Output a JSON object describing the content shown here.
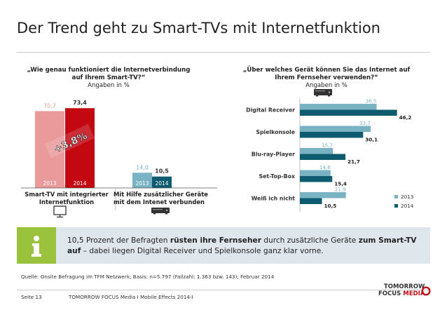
{
  "title": "Der Trend geht zu Smart-TVs mit Internetfunktion",
  "left_chart": {
    "question": "„Wie genau funktioniert die Internetverbindung auf Ihrem Smart-TV?“",
    "subtitle": "Angaben in %",
    "change_label": "+3,8%"
  },
  "right_chart": {
    "question": "„Über welches Gerät können Sie das Internet auf Ihrem Fernseher verwenden?“",
    "subtitle": "Angaben in %"
  },
  "info": {
    "part1": "10,5 Prozent der Befragten ",
    "bold1": "rüsten ihre Fernseher",
    "part2": " durch zusätzliche Geräte ",
    "bold2": "zum Smart-TV auf",
    "part3": " – dabei liegen Digital Receiver und Spielkonsole ganz klar vorne."
  },
  "source": "Quelle: Onsite Befragung im TFM Netzwerk; Basis: n=5.797 (Fallzahl: 1.363 bzw. 143); Februar 2014",
  "footer": {
    "page": "Seite 13",
    "company": "TOMORROW FOCUS Media  I  Mobile Effects 2014-I"
  },
  "logo": {
    "line1": "TOMORROW",
    "line2a": "FOCUS",
    "line2b": "MEDIA"
  },
  "colors": {
    "series_2013_left": "#ea9a9a",
    "series_2014_left": "#c40812",
    "series_2013_right": "#79b2c2",
    "series_2014_right": "#0e5a6e",
    "info_icon": "#9bc23c",
    "info_box": "#dfe6ec"
  },
  "chart_data": [
    {
      "type": "bar",
      "categories": [
        "Smart-TV mit integrierter Internetfunktion",
        "Mit Hilfe zusätzlicher Geräte mit dem Intenet verbunden"
      ],
      "series": [
        {
          "name": "2013",
          "values": [
            70.7,
            14.0
          ],
          "labels": [
            "70,7",
            "14,0"
          ]
        },
        {
          "name": "2014",
          "values": [
            73.4,
            10.5
          ],
          "labels": [
            "73,4",
            "10,5"
          ]
        }
      ],
      "ylim": [
        0,
        80
      ]
    },
    {
      "type": "bar",
      "orientation": "horizontal",
      "categories": [
        "Digital Receiver",
        "Spielkonsole",
        "Blu-ray-Player",
        "Set-Top-Box",
        "Weiß ich nicht"
      ],
      "series": [
        {
          "name": "2013",
          "values": [
            36.5,
            33.7,
            15.7,
            14.6,
            21.9
          ],
          "labels": [
            "36,5",
            "33,7",
            "15,7",
            "14,6",
            "21,9"
          ]
        },
        {
          "name": "2014",
          "values": [
            46.2,
            30.1,
            21.7,
            15.4,
            10.5
          ],
          "labels": [
            "46,2",
            "30,1",
            "21,7",
            "15,4",
            "10,5"
          ]
        }
      ],
      "legend": [
        "2013",
        "2014"
      ],
      "legend_position": "bottom-right",
      "xlim": [
        0,
        50
      ]
    }
  ]
}
